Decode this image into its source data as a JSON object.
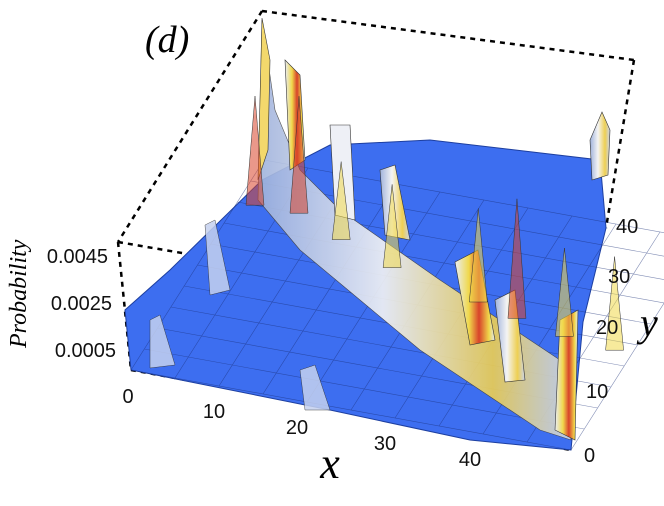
{
  "chart_data": {
    "type": "surface3d",
    "panel_label": "(d)",
    "xlabel": "x",
    "ylabel": "y",
    "zlabel": "Probability",
    "x_ticks": [
      "0",
      "10",
      "20",
      "30",
      "40"
    ],
    "y_ticks": [
      "0",
      "10",
      "20",
      "30",
      "40"
    ],
    "z_ticks": [
      "0.0005",
      "0.0025",
      "0.0045"
    ],
    "x_range": [
      0,
      50
    ],
    "y_range": [
      0,
      50
    ],
    "z_range": [
      0,
      0.0055
    ],
    "surface_color": "#3d6ef0",
    "ridge_colors": [
      "#f2f2f2",
      "#f0d84a",
      "#d8432a"
    ],
    "peaks": [
      {
        "x": 2,
        "y": 40,
        "height": 0.0042
      },
      {
        "x": 7,
        "y": 40,
        "height": 0.0045
      },
      {
        "x": 13,
        "y": 36,
        "height": 0.003
      },
      {
        "x": 20,
        "y": 32,
        "height": 0.0032
      },
      {
        "x": 31,
        "y": 28,
        "height": 0.0036
      },
      {
        "x": 36,
        "y": 26,
        "height": 0.0046
      },
      {
        "x": 42,
        "y": 24,
        "height": 0.0034
      },
      {
        "x": 48,
        "y": 23,
        "height": 0.0036
      },
      {
        "x": 49,
        "y": 49,
        "height": 0.0026
      }
    ]
  }
}
